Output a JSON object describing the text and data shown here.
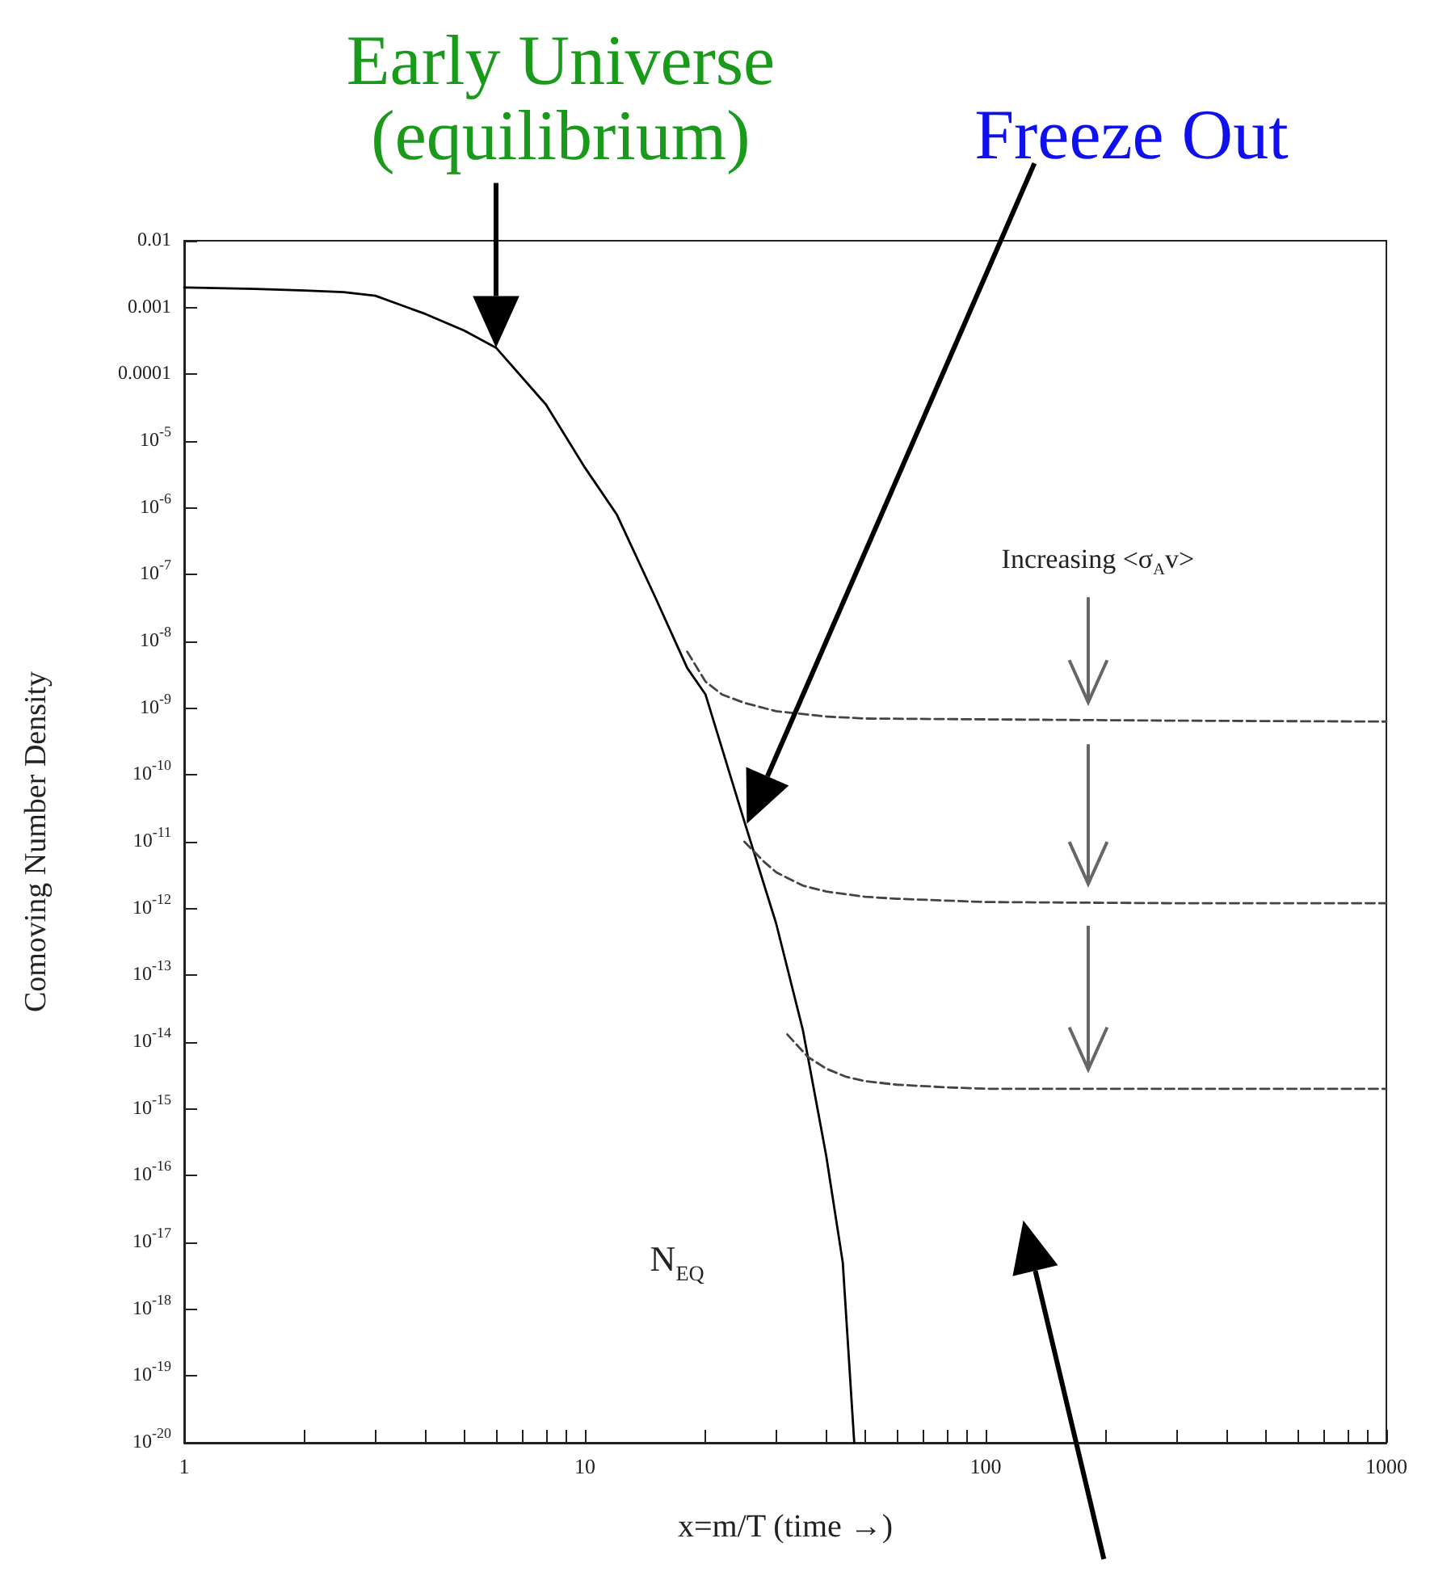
{
  "chart_data": {
    "type": "line",
    "xlabel": "x=m/T (time →)",
    "ylabel": "Comoving Number Density",
    "log": "xy",
    "xlim": [
      1,
      1000
    ],
    "xticks": [
      1,
      10,
      100,
      1000
    ],
    "ylim": [
      1e-20,
      0.01
    ],
    "yticks": [
      0.01,
      0.001,
      0.0001,
      {
        "value": 1e-05,
        "label": "10$^{-5}$"
      },
      {
        "value": 1e-06,
        "label": "10$^{-6}$"
      },
      {
        "value": 1e-07,
        "label": "10$^{-7}$"
      },
      {
        "value": 1e-08,
        "label": "10$^{-8}$"
      },
      {
        "value": 1e-09,
        "label": "10$^{-9}$"
      },
      {
        "value": 1e-10,
        "label": "10$^{-10}$"
      },
      {
        "value": 1e-11,
        "label": "10$^{-11}$"
      },
      {
        "value": 1e-12,
        "label": "10$^{-12}$"
      },
      {
        "value": 1e-13,
        "label": "10$^{-13}$"
      },
      {
        "value": 1e-14,
        "label": "10$^{-14}$"
      },
      {
        "value": 1e-15,
        "label": "10$^{-15}$"
      },
      {
        "value": 1e-16,
        "label": "10$^{-16}$"
      },
      {
        "value": 1e-17,
        "label": "10$^{-17}$"
      },
      {
        "value": 1e-18,
        "label": "10$^{-18}$"
      },
      {
        "value": 1e-19,
        "label": "10$^{-19}$"
      },
      {
        "value": 1e-20,
        "label": "10$^{-20}$"
      }
    ],
    "grid": false,
    "marker": "none",
    "series": [
      {
        "color": "#000000",
        "line_style": "solid",
        "x": [
          1,
          1.5,
          2,
          2.5,
          3,
          4,
          5,
          6,
          8,
          10,
          12,
          15,
          18,
          20,
          25,
          30,
          35,
          40,
          44,
          47
        ],
        "values": [
          0.002,
          0.0019,
          0.0018,
          0.0017,
          0.0015,
          0.0008,
          0.00045,
          0.00025,
          3.5e-05,
          4e-06,
          8e-07,
          4.5e-08,
          4e-09,
          1.6e-09,
          2e-11,
          6e-13,
          1.5e-14,
          2e-16,
          5e-18,
          1e-20
        ]
      },
      {
        "color": "#444444",
        "line_style": "dashed",
        "x": [
          18,
          20,
          22,
          25,
          30,
          40,
          50,
          100,
          300,
          1000
        ],
        "values": [
          7e-09,
          2.5e-09,
          1.6e-09,
          1.2e-09,
          9e-10,
          7.5e-10,
          7e-10,
          6.8e-10,
          6.5e-10,
          6.3e-10
        ]
      },
      {
        "color": "#444444",
        "line_style": "dashed",
        "x": [
          25,
          28,
          30,
          35,
          40,
          50,
          60,
          100,
          300,
          1000
        ],
        "values": [
          1e-11,
          5e-12,
          3.5e-12,
          2.2e-12,
          1.8e-12,
          1.5e-12,
          1.4e-12,
          1.25e-12,
          1.2e-12,
          1.2e-12
        ]
      },
      {
        "color": "#444444",
        "line_style": "dashed",
        "x": [
          32,
          36,
          40,
          45,
          50,
          60,
          80,
          100,
          300,
          1000
        ],
        "values": [
          1.3e-14,
          6e-15,
          4e-15,
          3e-15,
          2.6e-15,
          2.3e-15,
          2.1e-15,
          2e-15,
          2e-15,
          2e-15
        ]
      }
    ],
    "annotations": [
      {
        "text": "Early Universe\n(equilibrium)",
        "x": 6,
        "y": 0.00025
      },
      "Freeze Out",
      "Increasing <σ$_{A}$v>",
      "N$_{EQ}$"
    ]
  }
}
